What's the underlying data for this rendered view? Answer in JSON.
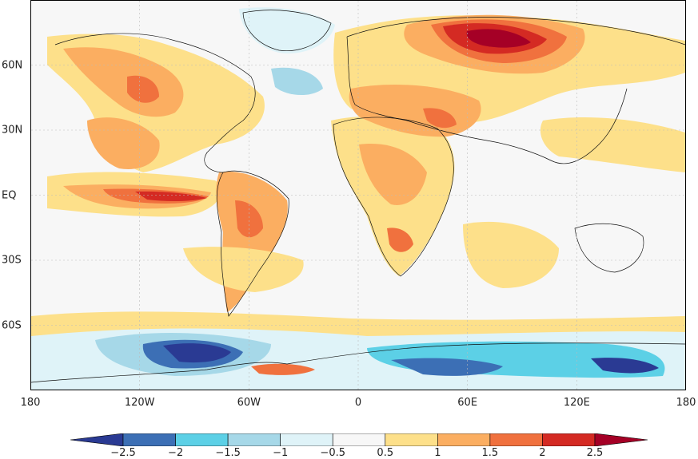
{
  "map": {
    "lon_ticks": [
      "180",
      "120W",
      "60W",
      "0",
      "60E",
      "120E",
      "180"
    ],
    "lat_ticks": [
      "60N",
      "30N",
      "EQ",
      "30S",
      "60S"
    ],
    "lon_range": [
      -180,
      180
    ],
    "lat_range": [
      -90,
      90
    ],
    "grid": "dotted",
    "background_color": "#f7f7f7"
  },
  "legend": {
    "orientation": "horizontal",
    "placement": "bottom",
    "labels": [
      "−2.5",
      "−2",
      "−1.5",
      "−1",
      "−0.5",
      "0.5",
      "1",
      "1.5",
      "2",
      "2.5"
    ],
    "levels": [
      -2.5,
      -2,
      -1.5,
      -1,
      -0.5,
      0.5,
      1,
      1.5,
      2,
      2.5
    ],
    "colors": [
      "#2a3a93",
      "#3c6fb5",
      "#5cd0e6",
      "#a6d8e8",
      "#dff3f8",
      "#f7f7f7",
      "#fde08a",
      "#fbae61",
      "#f0713e",
      "#d42a23",
      "#a50026"
    ]
  }
}
